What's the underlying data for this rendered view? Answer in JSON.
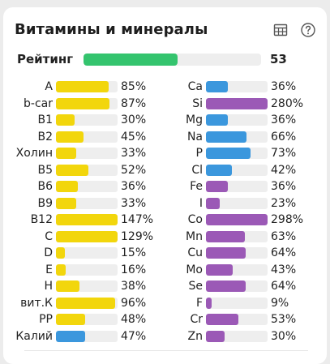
{
  "title": "Витамины и минералы",
  "icons": {
    "table": "table-icon",
    "help": "help-circle-icon"
  },
  "colors": {
    "rating": "#34c46e",
    "vitamin": "#f2d60c",
    "mineral_blue": "#3b97dd",
    "mineral_purple": "#9b59b6",
    "track": "#eeeeee"
  },
  "rating": {
    "label": "Рейтинг",
    "value": "53",
    "fraction": 0.53
  },
  "left": [
    {
      "name": "A",
      "value": "85%",
      "level": 0.85,
      "color": "#f2d60c"
    },
    {
      "name": "b-car",
      "value": "87%",
      "level": 0.87,
      "color": "#f2d60c"
    },
    {
      "name": "B1",
      "value": "30%",
      "level": 0.3,
      "color": "#f2d60c"
    },
    {
      "name": "B2",
      "value": "45%",
      "level": 0.45,
      "color": "#f2d60c"
    },
    {
      "name": "Холин",
      "value": "33%",
      "level": 0.33,
      "color": "#f2d60c"
    },
    {
      "name": "B5",
      "value": "52%",
      "level": 0.52,
      "color": "#f2d60c"
    },
    {
      "name": "B6",
      "value": "36%",
      "level": 0.36,
      "color": "#f2d60c"
    },
    {
      "name": "B9",
      "value": "33%",
      "level": 0.33,
      "color": "#f2d60c"
    },
    {
      "name": "B12",
      "value": "147%",
      "level": 1.0,
      "color": "#f2d60c"
    },
    {
      "name": "C",
      "value": "129%",
      "level": 1.0,
      "color": "#f2d60c"
    },
    {
      "name": "D",
      "value": "15%",
      "level": 0.15,
      "color": "#f2d60c"
    },
    {
      "name": "E",
      "value": "16%",
      "level": 0.16,
      "color": "#f2d60c"
    },
    {
      "name": "H",
      "value": "38%",
      "level": 0.38,
      "color": "#f2d60c"
    },
    {
      "name": "вит.К",
      "value": "96%",
      "level": 0.96,
      "color": "#f2d60c"
    },
    {
      "name": "PP",
      "value": "48%",
      "level": 0.48,
      "color": "#f2d60c"
    },
    {
      "name": "Калий",
      "value": "47%",
      "level": 0.47,
      "color": "#3b97dd"
    }
  ],
  "right": [
    {
      "name": "Ca",
      "value": "36%",
      "level": 0.36,
      "color": "#3b97dd"
    },
    {
      "name": "Si",
      "value": "280%",
      "level": 1.0,
      "color": "#9b59b6"
    },
    {
      "name": "Mg",
      "value": "36%",
      "level": 0.36,
      "color": "#3b97dd"
    },
    {
      "name": "Na",
      "value": "66%",
      "level": 0.66,
      "color": "#3b97dd"
    },
    {
      "name": "P",
      "value": "73%",
      "level": 0.73,
      "color": "#3b97dd"
    },
    {
      "name": "Cl",
      "value": "42%",
      "level": 0.42,
      "color": "#3b97dd"
    },
    {
      "name": "Fe",
      "value": "36%",
      "level": 0.36,
      "color": "#9b59b6"
    },
    {
      "name": "I",
      "value": "23%",
      "level": 0.23,
      "color": "#9b59b6"
    },
    {
      "name": "Co",
      "value": "298%",
      "level": 1.0,
      "color": "#9b59b6"
    },
    {
      "name": "Mn",
      "value": "63%",
      "level": 0.63,
      "color": "#9b59b6"
    },
    {
      "name": "Cu",
      "value": "64%",
      "level": 0.64,
      "color": "#9b59b6"
    },
    {
      "name": "Mo",
      "value": "43%",
      "level": 0.43,
      "color": "#9b59b6"
    },
    {
      "name": "Se",
      "value": "64%",
      "level": 0.64,
      "color": "#9b59b6"
    },
    {
      "name": "F",
      "value": "9%",
      "level": 0.09,
      "color": "#9b59b6"
    },
    {
      "name": "Cr",
      "value": "53%",
      "level": 0.53,
      "color": "#9b59b6"
    },
    {
      "name": "Zn",
      "value": "30%",
      "level": 0.3,
      "color": "#9b59b6"
    }
  ]
}
